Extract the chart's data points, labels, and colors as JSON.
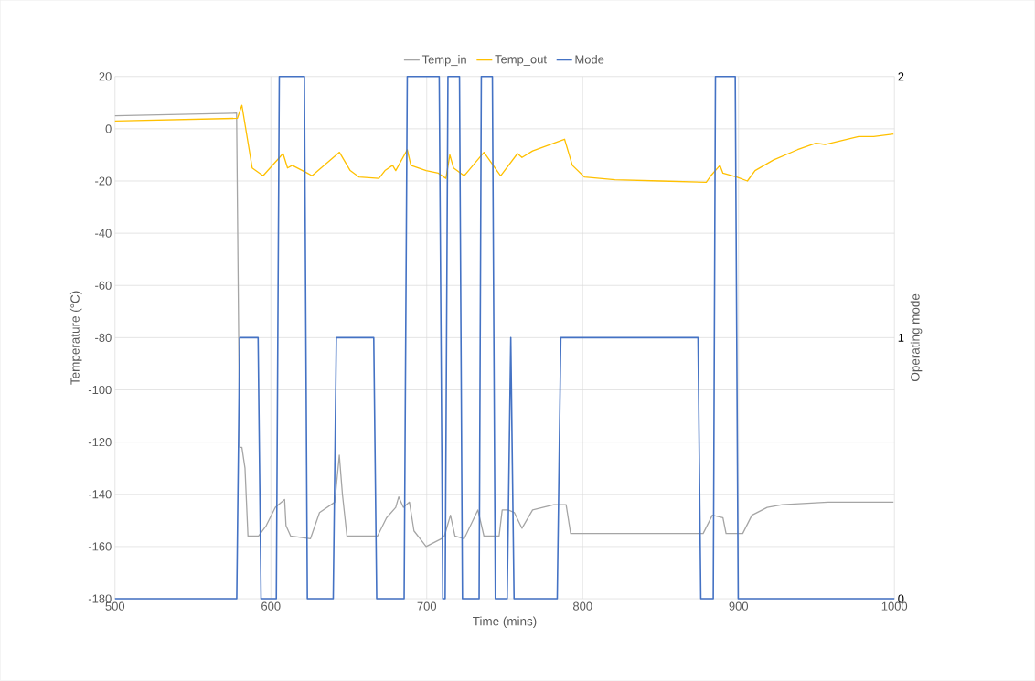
{
  "chart_data": {
    "type": "line",
    "xlabel": "Time (mins)",
    "ylabel": "Temperature (°C)",
    "y2label": "Operating mode",
    "xlim": [
      500,
      1000
    ],
    "xticks": [
      500,
      600,
      700,
      800,
      900,
      1000
    ],
    "ylim": [
      -180,
      20
    ],
    "yticks": [
      -180,
      -160,
      -140,
      -120,
      -100,
      -80,
      -60,
      -40,
      -20,
      0,
      20
    ],
    "y2lim": [
      0,
      2
    ],
    "y2ticks": [
      0,
      1,
      2
    ],
    "grid": true,
    "legend": "top",
    "series": [
      {
        "name": "Temp_in",
        "color": "#a5a5a5",
        "x": [
          500,
          578,
          580,
          581.4,
          583.4,
          585.3,
          592.1,
          597,
          602.9,
          608.8,
          609.7,
          612.7,
          625.4,
          631.2,
          641,
          643.9,
          645.9,
          648.8,
          668.4,
          674.2,
          680.1,
          682,
          685,
          688.9,
          691.8,
          699.6,
          709.4,
          711.3,
          715.2,
          718.1,
          724,
          732.8,
          736.7,
          746.4,
          748.4,
          752.3,
          756.2,
          761.1,
          767.9,
          781.6,
          789.4,
          792.3,
          801.2,
          877.3,
          883.2,
          890,
          892,
          902.7,
          908.6,
          918.4,
          928.1,
          957.4,
          977,
          999.4
        ],
        "values": [
          5,
          6,
          -122,
          -122,
          -130,
          -156,
          -156,
          -152,
          -145,
          -142,
          -152,
          -156,
          -157,
          -147,
          -143,
          -125,
          -140,
          -156,
          -156,
          -149,
          -145,
          -141,
          -145,
          -143,
          -154,
          -160,
          -157,
          -156,
          -148,
          -156,
          -157,
          -146,
          -156,
          -156,
          -146,
          -146,
          -147,
          -153,
          -146,
          -144,
          -144,
          -155,
          -155,
          -155,
          -148,
          -149,
          -155,
          -155,
          -148,
          -145,
          -144,
          -143,
          -143,
          -143
        ]
      },
      {
        "name": "Temp_out",
        "color": "#ffc000",
        "x": [
          500,
          578.5,
          581.4,
          588,
          595,
          607.8,
          610.7,
          613.7,
          623.4,
          626.4,
          644,
          650.9,
          656.6,
          669.3,
          673.2,
          678.1,
          680.1,
          687.5,
          689.8,
          699.6,
          707.4,
          712.3,
          714.8,
          717.2,
          724,
          736.7,
          742.6,
          747.4,
          758.2,
          761.1,
          767.9,
          788.4,
          793.4,
          801.2,
          820.7,
          850,
          879.3,
          882.2,
          888.1,
          890,
          898.8,
          905.7,
          910.6,
          922.3,
          937.9,
          949.6,
          955.5,
          977,
          986.7,
          999.4
        ],
        "values": [
          3,
          4,
          9,
          -15,
          -18,
          -9.5,
          -15,
          -14,
          -17,
          -18,
          -9,
          -16,
          -18.5,
          -19,
          -16,
          -14,
          -16,
          -8,
          -14,
          -16,
          -17,
          -19,
          -10,
          -15,
          -18,
          -9,
          -14,
          -18,
          -9.5,
          -11,
          -8.5,
          -4,
          -14,
          -18.5,
          -19.5,
          -20,
          -20.5,
          -18,
          -14,
          -17,
          -18.5,
          -20,
          -16,
          -12,
          -8,
          -5.5,
          -6,
          -3,
          -3,
          -2
        ]
      },
      {
        "name": "Mode",
        "color": "#4472c4",
        "axis": "y2",
        "x": [
          500,
          578.1,
          580,
          591.8,
          593.7,
          603.5,
          605.4,
          621.5,
          623.4,
          640,
          642,
          666,
          667.9,
          685.5,
          687.5,
          708,
          710.3,
          711.8,
          713.6,
          721,
          722.9,
          733.6,
          735,
          742.1,
          744,
          751.6,
          753.9,
          756,
          783.7,
          786,
          874,
          875.8,
          883.8,
          885.2,
          897.9,
          899.8,
          1000
        ],
        "values": [
          0,
          0,
          1,
          1,
          0,
          0,
          2,
          2,
          0,
          0,
          1,
          1,
          0,
          0,
          2,
          2,
          0,
          0,
          2,
          2,
          0,
          0,
          2,
          2,
          0,
          0,
          1,
          0,
          0,
          1,
          1,
          0,
          0,
          2,
          2,
          0,
          0
        ]
      }
    ]
  }
}
